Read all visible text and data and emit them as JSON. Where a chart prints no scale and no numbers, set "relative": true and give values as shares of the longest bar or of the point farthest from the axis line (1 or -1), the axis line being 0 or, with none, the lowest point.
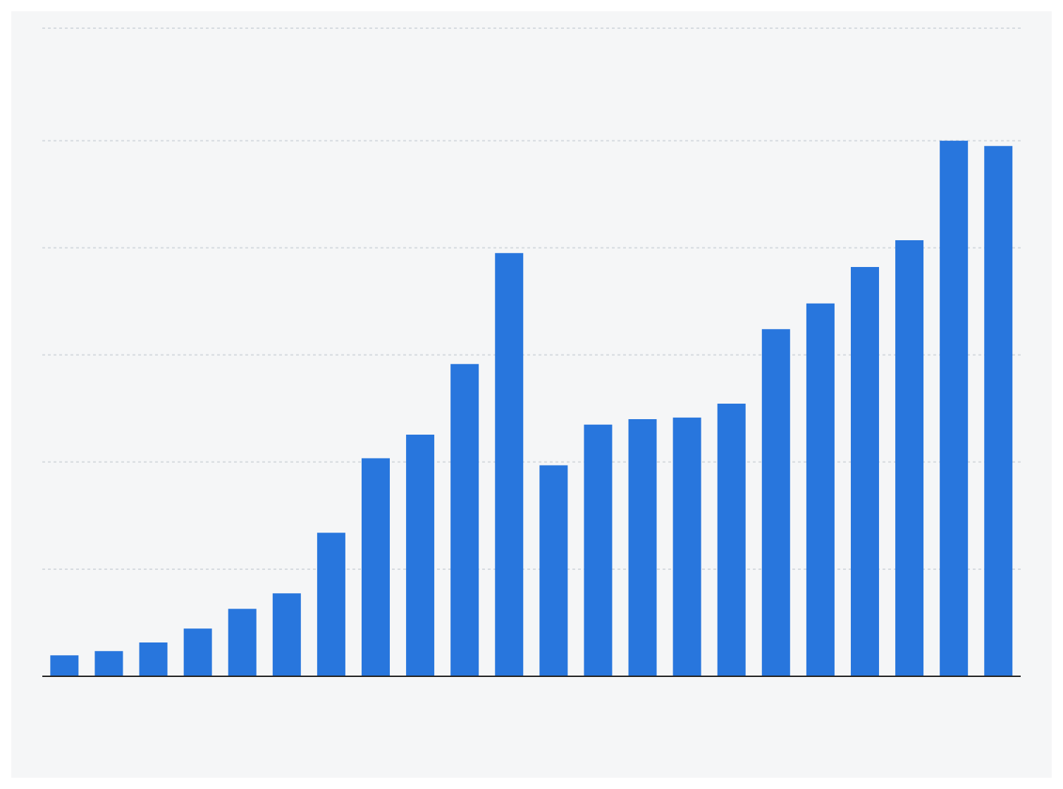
{
  "chart_data": {
    "type": "bar",
    "relative": true,
    "grid": "y",
    "color": "#2876dd",
    "categories": [
      null,
      null,
      null,
      null,
      null,
      null,
      null,
      null,
      null,
      null,
      null,
      null,
      null,
      null,
      null,
      null,
      null,
      null,
      null,
      null,
      null,
      null
    ],
    "values": [
      0.039,
      0.047,
      0.063,
      0.089,
      0.126,
      0.155,
      0.268,
      0.407,
      0.451,
      0.583,
      0.79,
      0.394,
      0.47,
      0.48,
      0.483,
      0.509,
      0.648,
      0.696,
      0.764,
      0.814,
      1,
      0.99
    ]
  }
}
